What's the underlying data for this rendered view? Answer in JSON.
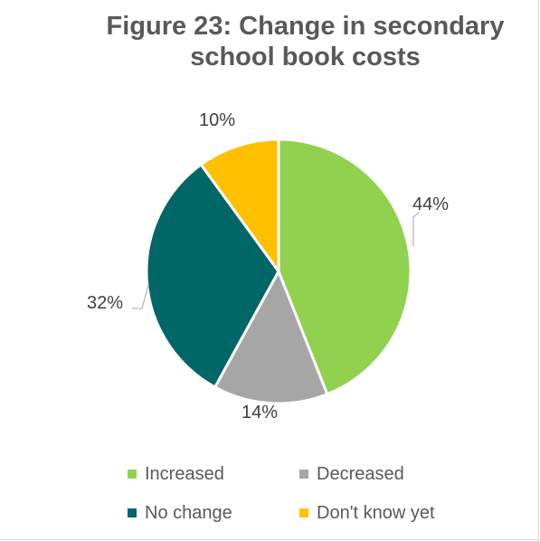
{
  "chart_data": {
    "type": "pie",
    "title": "Figure 23: Change in secondary school book costs",
    "title_lines": [
      "Figure 23: Change in secondary",
      "school book costs"
    ],
    "slices": [
      {
        "name": "Increased",
        "value": 44,
        "label": "44%",
        "color": "#92d050"
      },
      {
        "name": "Decreased",
        "value": 14,
        "label": "14%",
        "color": "#a6a6a6"
      },
      {
        "name": "No change",
        "value": 32,
        "label": "32%",
        "color": "#006666"
      },
      {
        "name": "Don't know yet",
        "value": 10,
        "label": "10%",
        "color": "#ffc000"
      }
    ],
    "legend_position": "bottom"
  }
}
